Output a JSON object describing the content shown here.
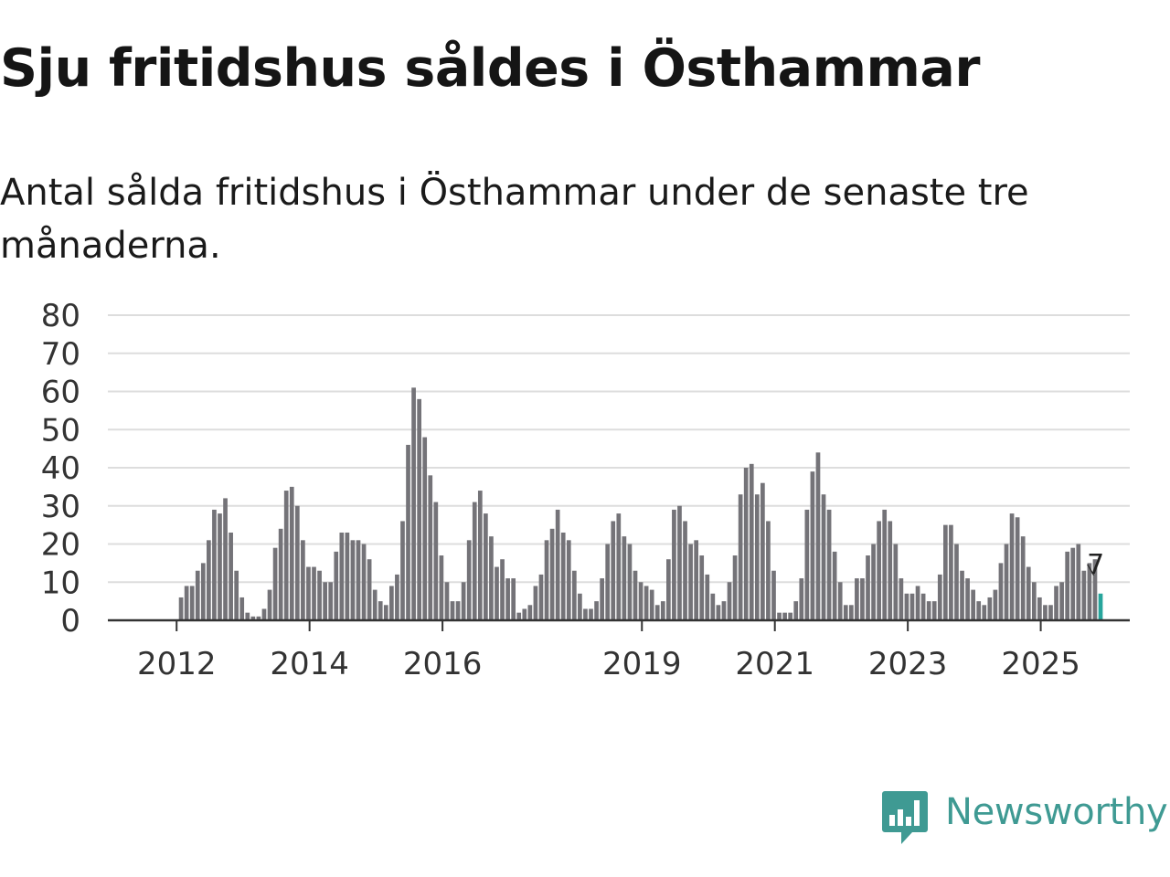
{
  "title": "Sju fritidshus såldes i Östhammar",
  "subtitle": "Antal sålda fritidshus i Östhammar under de senaste tre månaderna.",
  "brand": {
    "name": "Newsworthy",
    "color": "#3f9a93"
  },
  "colors": {
    "bar": "#747378",
    "highlight": "#27a59c",
    "grid": "#dddddd",
    "axis": "#333333"
  },
  "chart_data": {
    "type": "bar",
    "title": "",
    "xlabel": "",
    "ylabel": "",
    "ylim": [
      0,
      80
    ],
    "yticks": [
      "0",
      "10",
      "20",
      "30",
      "40",
      "50",
      "60",
      "70",
      "80"
    ],
    "start": "2011-01",
    "xticks": [
      {
        "label": "2012",
        "index": 12
      },
      {
        "label": "2014",
        "index": 36
      },
      {
        "label": "2016",
        "index": 60
      },
      {
        "label": "2019",
        "index": 96
      },
      {
        "label": "2021",
        "index": 120
      },
      {
        "label": "2023",
        "index": 144
      },
      {
        "label": "2025",
        "index": 168
      }
    ],
    "values": [
      0,
      0,
      0,
      0,
      0,
      0,
      0,
      0,
      0,
      0,
      0,
      0,
      6,
      9,
      9,
      13,
      15,
      21,
      29,
      28,
      32,
      23,
      13,
      6,
      2,
      1,
      1,
      3,
      8,
      19,
      24,
      34,
      35,
      30,
      21,
      14,
      14,
      13,
      10,
      10,
      18,
      23,
      23,
      21,
      21,
      20,
      16,
      8,
      5,
      4,
      9,
      12,
      26,
      46,
      61,
      58,
      48,
      38,
      31,
      17,
      10,
      5,
      5,
      10,
      21,
      31,
      34,
      28,
      22,
      14,
      16,
      11,
      11,
      2,
      3,
      4,
      9,
      12,
      21,
      24,
      29,
      23,
      21,
      13,
      7,
      3,
      3,
      5,
      11,
      20,
      26,
      28,
      22,
      20,
      13,
      10,
      9,
      8,
      4,
      5,
      16,
      29,
      30,
      26,
      20,
      21,
      17,
      12,
      7,
      4,
      5,
      10,
      17,
      33,
      40,
      41,
      33,
      36,
      26,
      13,
      2,
      2,
      2,
      5,
      11,
      29,
      39,
      44,
      33,
      29,
      18,
      10,
      4,
      4,
      11,
      11,
      17,
      20,
      26,
      29,
      26,
      20,
      11,
      7,
      7,
      9,
      7,
      5,
      5,
      12,
      25,
      25,
      20,
      13,
      11,
      8,
      5,
      4,
      6,
      8,
      15,
      20,
      28,
      27,
      22,
      14,
      10,
      6,
      4,
      4,
      9,
      10,
      18,
      19,
      20,
      13,
      15,
      16,
      7
    ],
    "highlight_index": 178,
    "annotation": {
      "label": "7",
      "index": 178
    }
  }
}
